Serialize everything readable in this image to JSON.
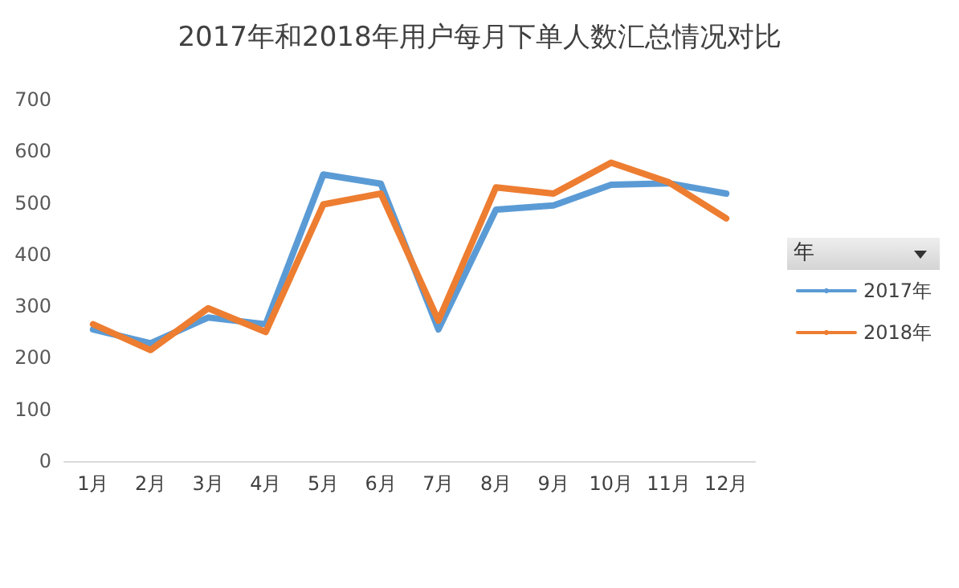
{
  "chart_data": {
    "type": "line",
    "title": "2017年和2018年用户每月下单人数汇总情况对比",
    "legend_title": "年",
    "categories": [
      "1月",
      "2月",
      "3月",
      "4月",
      "5月",
      "6月",
      "7月",
      "8月",
      "9月",
      "10月",
      "11月",
      "12月"
    ],
    "series": [
      {
        "name": "2017年",
        "color": "#5b9bd5",
        "values": [
          255,
          228,
          278,
          265,
          555,
          537,
          255,
          487,
          495,
          535,
          538,
          518
        ]
      },
      {
        "name": "2018年",
        "color": "#ed7d31",
        "values": [
          265,
          215,
          296,
          250,
          497,
          518,
          272,
          530,
          518,
          578,
          540,
          470
        ]
      }
    ],
    "ylim": [
      0,
      700
    ],
    "yticks": [
      0,
      100,
      200,
      300,
      400,
      500,
      600,
      700
    ],
    "grid": false,
    "legend": "right",
    "marker": "none",
    "line_style": "solid"
  }
}
